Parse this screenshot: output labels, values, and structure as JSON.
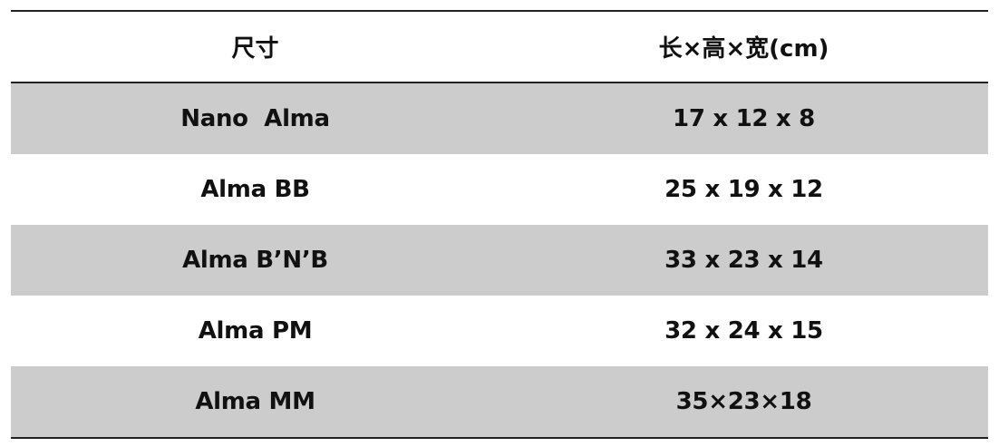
{
  "table": {
    "headers": [
      "尺寸",
      "长×高×宽(cm)"
    ],
    "rows": [
      [
        "Nano  Alma",
        "17 x 12 x 8"
      ],
      [
        "Alma BB",
        "25 x 19 x 12"
      ],
      [
        "Alma B’N’B",
        "33 x 23 x 14"
      ],
      [
        "Alma PM",
        "32 x 24 x 15"
      ],
      [
        "Alma MM",
        "35×23×18"
      ]
    ],
    "shade_color": "#cccccc"
  }
}
